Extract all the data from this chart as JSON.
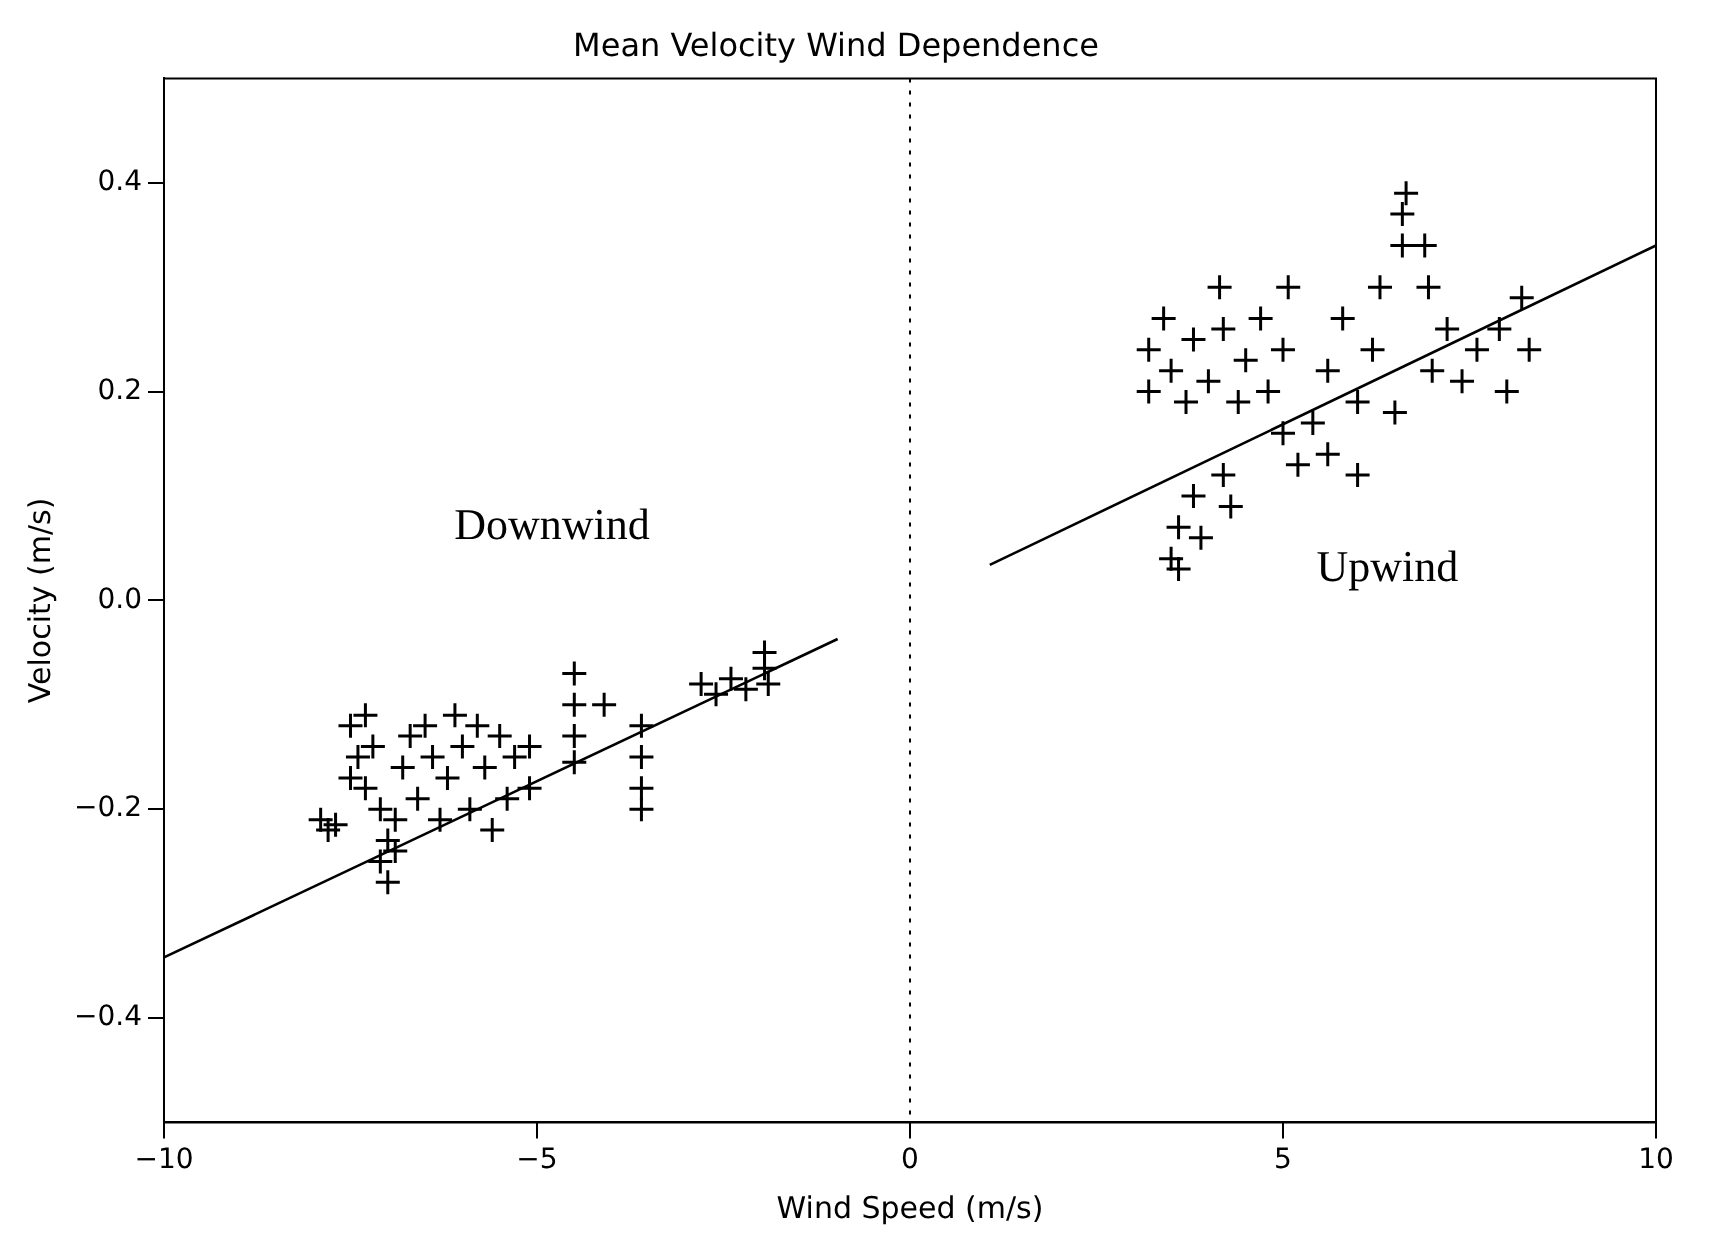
{
  "chart_data": {
    "type": "scatter",
    "title": "Mean Velocity Wind Dependence",
    "xlabel": "Wind Speed (m/s)",
    "ylabel": "Velocity (m/s)",
    "annotations": [
      "Downwind",
      "Upwind"
    ],
    "xlim": [
      -10,
      10
    ],
    "xticks": [
      -10,
      -5,
      0,
      5,
      10
    ],
    "ylim": [
      -0.5,
      0.5
    ],
    "yticks": [
      -0.4,
      -0.2,
      {
        "value": 0,
        "label": "0.0"
      },
      0.2,
      0.4
    ],
    "grid": false,
    "legend": false,
    "marker": "cross",
    "ref_lines": [
      {
        "axis": "x",
        "value": 0,
        "line_style": "dotted",
        "color": "#000000"
      }
    ],
    "series": [
      {
        "type": "scatter",
        "color": "#000000",
        "x": [
          -7.9,
          -7.8,
          -7.7,
          -7.5,
          -7.4,
          -7.5,
          -7.3,
          -7.2,
          -7.3,
          -7.1,
          -7.0,
          -7.1,
          -7.0,
          -6.9,
          -6.9,
          -6.8,
          -6.7,
          -6.6,
          -6.5,
          -6.4,
          -6.3,
          -6.2,
          -6.1,
          -6.0,
          -5.9,
          -5.8,
          -5.7,
          -5.6,
          -5.5,
          -5.4,
          -5.3,
          -5.1,
          -5.1,
          -4.5,
          -4.5,
          -4.5,
          -4.5,
          -4.1,
          -3.6,
          -3.6,
          -3.6,
          -3.6,
          -2.8,
          -2.6,
          -2.4,
          -2.2,
          -1.95,
          -1.95,
          -1.9
        ],
        "values": [
          -0.21,
          -0.22,
          -0.215,
          -0.12,
          -0.15,
          -0.17,
          -0.11,
          -0.14,
          -0.18,
          -0.2,
          -0.23,
          -0.25,
          -0.27,
          -0.24,
          -0.21,
          -0.16,
          -0.13,
          -0.19,
          -0.12,
          -0.15,
          -0.21,
          -0.17,
          -0.11,
          -0.14,
          -0.2,
          -0.12,
          -0.16,
          -0.22,
          -0.13,
          -0.19,
          -0.15,
          -0.14,
          -0.18,
          -0.07,
          -0.1,
          -0.13,
          -0.155,
          -0.1,
          -0.12,
          -0.15,
          -0.18,
          -0.2,
          -0.08,
          -0.09,
          -0.075,
          -0.085,
          -0.05,
          -0.065,
          -0.08
        ]
      },
      {
        "type": "scatter",
        "color": "#000000",
        "x": [
          3.2,
          3.2,
          3.4,
          3.5,
          3.7,
          3.8,
          4.0,
          4.15,
          4.2,
          4.4,
          4.5,
          4.7,
          4.8,
          5.07,
          5.0,
          5.0,
          5.2,
          5.4,
          5.6,
          5.6,
          5.8,
          6.0,
          6.0,
          6.2,
          6.3,
          6.5,
          6.6,
          6.65,
          6.6,
          6.9,
          6.95,
          7.0,
          7.2,
          7.4,
          7.6,
          7.9,
          8.2,
          8.3,
          8.0,
          3.5,
          3.6,
          3.8,
          3.9,
          4.2,
          4.3,
          3.6
        ],
        "values": [
          0.24,
          0.2,
          0.27,
          0.22,
          0.19,
          0.25,
          0.21,
          0.3,
          0.26,
          0.19,
          0.23,
          0.27,
          0.2,
          0.3,
          0.24,
          0.16,
          0.13,
          0.17,
          0.14,
          0.22,
          0.27,
          0.12,
          0.19,
          0.24,
          0.3,
          0.18,
          0.37,
          0.39,
          0.34,
          0.34,
          0.3,
          0.22,
          0.26,
          0.21,
          0.24,
          0.26,
          0.29,
          0.24,
          0.2,
          0.04,
          0.07,
          0.1,
          0.06,
          0.12,
          0.09,
          0.03
        ]
      },
      {
        "type": "line",
        "color": "#000000",
        "marker": "none",
        "line_style": "solid",
        "x": [
          -10,
          -0.97
        ],
        "values": [
          -0.342,
          -0.037
        ]
      },
      {
        "type": "line",
        "color": "#000000",
        "marker": "none",
        "line_style": "solid",
        "x": [
          1.07,
          10
        ],
        "values": [
          0.034,
          0.34
        ]
      }
    ]
  }
}
